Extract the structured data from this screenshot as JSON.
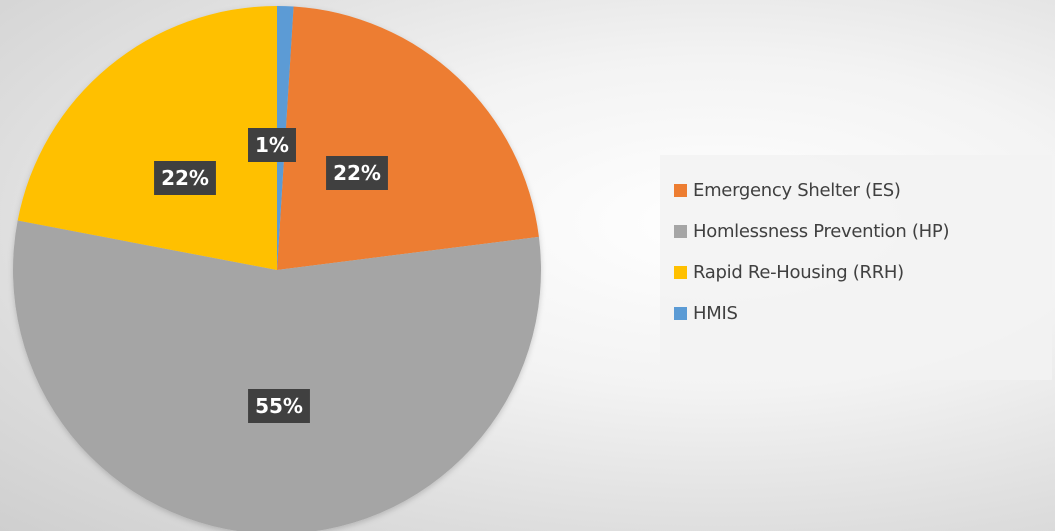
{
  "chart_data": {
    "type": "pie",
    "title": "",
    "start_angle_deg": 3.6,
    "slices": [
      {
        "label": "Emergency Shelter (ES)",
        "value": 22,
        "display": "22%",
        "color": "#ED7D31"
      },
      {
        "label": "Homlessness Prevention (HP)",
        "value": 55,
        "display": "55%",
        "color": "#A5A5A5"
      },
      {
        "label": "Rapid Re-Housing (RRH)",
        "value": 22,
        "display": "22%",
        "color": "#FFC000"
      },
      {
        "label": "HMIS",
        "value": 1,
        "display": "1%",
        "color": "#5B9BD5"
      }
    ],
    "legend": {
      "position": "right",
      "items": [
        "Emergency Shelter (ES)",
        "Homlessness Prevention (HP)",
        "Rapid Re-Housing (RRH)",
        "HMIS"
      ]
    },
    "data_label_style": {
      "background": "#404040",
      "text_color": "#FFFFFF"
    }
  }
}
